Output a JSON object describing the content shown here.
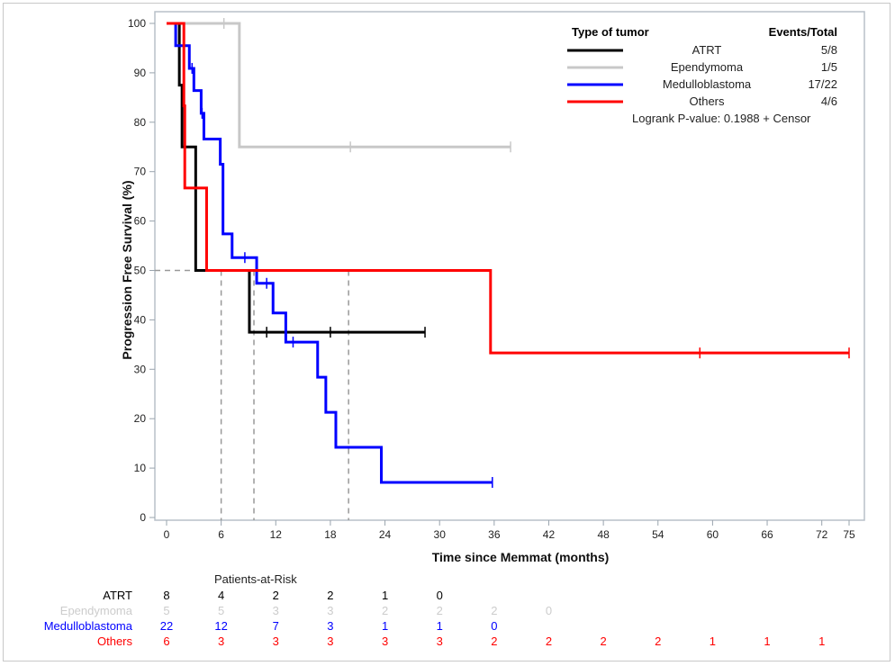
{
  "chart_data": {
    "type": "line",
    "subtype": "kaplan-meier",
    "xlabel": "Time since Memmat (months)",
    "ylabel": "Progression Free Survival (%)",
    "xlim": [
      0,
      75
    ],
    "ylim": [
      0,
      100
    ],
    "xticks": [
      0,
      6,
      12,
      18,
      24,
      30,
      36,
      42,
      48,
      54,
      60,
      66,
      72,
      75
    ],
    "yticks": [
      0,
      10,
      20,
      30,
      40,
      50,
      60,
      70,
      80,
      90,
      100
    ],
    "grid": false,
    "legend": {
      "position": "top-right",
      "header_left": "Type of tumor",
      "header_right": "Events/Total",
      "footer": "Logrank P-value: 0.1988",
      "censor_label": "Censor"
    },
    "median_reference": {
      "y": 50,
      "x_lines": [
        6,
        9.6,
        20
      ]
    },
    "series": [
      {
        "name": "ATRT",
        "events_total": "5/8",
        "color": "#000000",
        "steps": [
          [
            0,
            100
          ],
          [
            1.4,
            87.5
          ],
          [
            1.7,
            75
          ],
          [
            3.2,
            50
          ],
          [
            9.1,
            37.5
          ],
          [
            28.4,
            37.5
          ]
        ],
        "censors": [
          [
            11.0,
            37.5
          ],
          [
            18.0,
            37.5
          ],
          [
            28.4,
            37.5
          ]
        ]
      },
      {
        "name": "Ependymoma",
        "events_total": "1/5",
        "color": "#c8c8c8",
        "steps": [
          [
            0,
            100
          ],
          [
            8.0,
            75
          ],
          [
            37.8,
            75
          ]
        ],
        "censors": [
          [
            6.3,
            100
          ],
          [
            20.2,
            75
          ],
          [
            37.8,
            75
          ]
        ]
      },
      {
        "name": "Medulloblastoma",
        "events_total": "17/22",
        "color": "#0000ff",
        "steps": [
          [
            0,
            100
          ],
          [
            1.0,
            95.5
          ],
          [
            2.5,
            90.9
          ],
          [
            3.0,
            86.4
          ],
          [
            3.8,
            81.8
          ],
          [
            4.1,
            76.6
          ],
          [
            5.9,
            71.5
          ],
          [
            6.2,
            57.4
          ],
          [
            7.2,
            52.6
          ],
          [
            9.9,
            47.4
          ],
          [
            11.7,
            41.4
          ],
          [
            13.1,
            35.5
          ],
          [
            16.6,
            28.4
          ],
          [
            17.5,
            21.3
          ],
          [
            18.6,
            14.2
          ],
          [
            23.6,
            7.1
          ],
          [
            35.8,
            7.1
          ]
        ],
        "censors": [
          [
            2.8,
            90.9
          ],
          [
            3.9,
            81.8
          ],
          [
            8.6,
            52.6
          ],
          [
            11.0,
            47.4
          ],
          [
            13.9,
            35.5
          ],
          [
            35.8,
            7.1
          ]
        ]
      },
      {
        "name": "Others",
        "events_total": "4/6",
        "color": "#ff0000",
        "steps": [
          [
            0,
            100
          ],
          [
            1.9,
            83.3
          ],
          [
            2.0,
            66.7
          ],
          [
            4.4,
            50
          ],
          [
            35.6,
            33.3
          ],
          [
            75,
            33.3
          ]
        ],
        "censors": [
          [
            58.6,
            33.3
          ],
          [
            75,
            33.3
          ]
        ]
      }
    ],
    "at_risk": {
      "title": "Patients-at-Risk",
      "times": [
        0,
        6,
        12,
        18,
        24,
        30,
        36,
        42,
        48,
        54,
        60,
        66,
        72
      ],
      "rows": [
        {
          "name": "ATRT",
          "color": "#000000",
          "values": [
            8,
            4,
            2,
            2,
            1,
            0
          ]
        },
        {
          "name": "Ependymoma",
          "color": "#cccccc",
          "values": [
            5,
            5,
            3,
            3,
            2,
            2,
            2,
            0
          ]
        },
        {
          "name": "Medulloblastoma",
          "color": "#0000ff",
          "values": [
            22,
            12,
            7,
            3,
            1,
            1,
            0
          ]
        },
        {
          "name": "Others",
          "color": "#ff0000",
          "values": [
            6,
            3,
            3,
            3,
            3,
            3,
            2,
            2,
            2,
            2,
            1,
            1,
            1
          ]
        }
      ]
    }
  }
}
